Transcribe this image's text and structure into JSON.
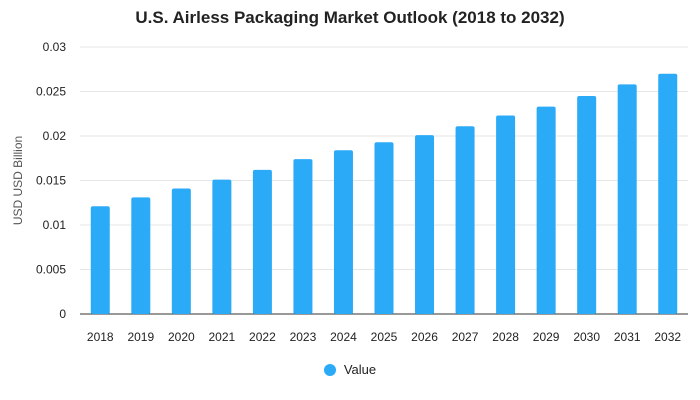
{
  "chart_data": {
    "type": "bar",
    "title": "U.S. Airless Packaging Market Outlook (2018 to 2032)",
    "xlabel": "",
    "ylabel": "USD USD Billion",
    "categories": [
      "2018",
      "2019",
      "2020",
      "2021",
      "2022",
      "2023",
      "2024",
      "2025",
      "2026",
      "2027",
      "2028",
      "2029",
      "2030",
      "2031",
      "2032"
    ],
    "series": [
      {
        "name": "Value",
        "values": [
          0.0121,
          0.0131,
          0.0141,
          0.0151,
          0.0162,
          0.0174,
          0.0184,
          0.0193,
          0.0201,
          0.0211,
          0.0223,
          0.0233,
          0.0245,
          0.0258,
          0.027
        ]
      }
    ],
    "ylim": [
      0,
      0.03
    ],
    "yticks": [
      "0",
      "0.005",
      "0.01",
      "0.015",
      "0.02",
      "0.025",
      "0.03"
    ],
    "grid": true,
    "legend_position": "bottom",
    "colors": {
      "bar": "#2BAAF8",
      "grid": "#E6E6E6",
      "axis": "#333333"
    }
  }
}
